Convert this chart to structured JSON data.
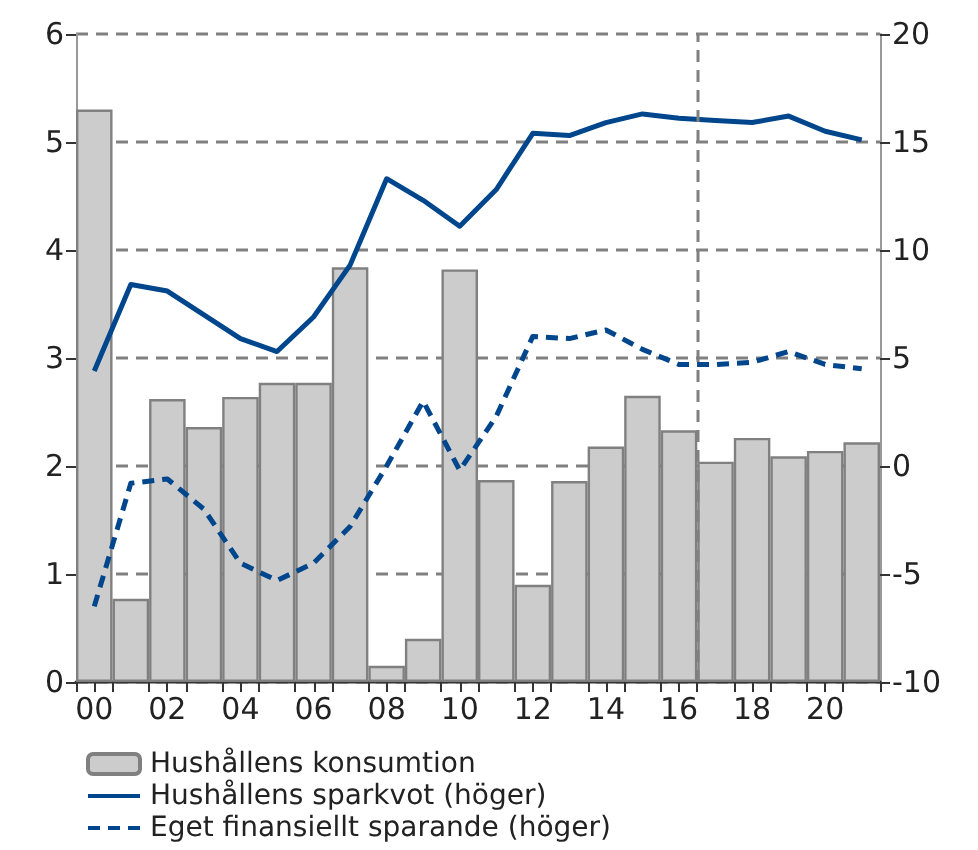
{
  "chart_data": {
    "type": "bar",
    "x": [
      2000,
      2001,
      2002,
      2003,
      2004,
      2005,
      2006,
      2007,
      2008,
      2009,
      2010,
      2011,
      2012,
      2013,
      2014,
      2015,
      2016,
      2017,
      2018,
      2019,
      2020,
      2021
    ],
    "xlim": [
      1999.5,
      2021.5
    ],
    "xticks": [
      {
        "value": 1999.5,
        "label": null
      },
      {
        "value": 2000,
        "label": "00"
      },
      {
        "value": 2000.5,
        "label": null
      },
      {
        "value": 2001.5,
        "label": null
      },
      {
        "value": 2002,
        "label": "02"
      },
      {
        "value": 2002.5,
        "label": null
      },
      {
        "value": 2003.5,
        "label": null
      },
      {
        "value": 2004,
        "label": "04"
      },
      {
        "value": 2004.5,
        "label": null
      },
      {
        "value": 2005.5,
        "label": null
      },
      {
        "value": 2006,
        "label": "06"
      },
      {
        "value": 2006.5,
        "label": null
      },
      {
        "value": 2007.5,
        "label": null
      },
      {
        "value": 2008,
        "label": "08"
      },
      {
        "value": 2008.5,
        "label": null
      },
      {
        "value": 2009.5,
        "label": null
      },
      {
        "value": 2010,
        "label": "10"
      },
      {
        "value": 2010.5,
        "label": null
      },
      {
        "value": 2011.5,
        "label": null
      },
      {
        "value": 2012,
        "label": "12"
      },
      {
        "value": 2012.5,
        "label": null
      },
      {
        "value": 2013.5,
        "label": null
      },
      {
        "value": 2014,
        "label": "14"
      },
      {
        "value": 2014.5,
        "label": null
      },
      {
        "value": 2015.5,
        "label": null
      },
      {
        "value": 2016,
        "label": "16"
      },
      {
        "value": 2016.5,
        "label": null
      },
      {
        "value": 2017.5,
        "label": null
      },
      {
        "value": 2018,
        "label": "18"
      },
      {
        "value": 2018.5,
        "label": null
      },
      {
        "value": 2019.5,
        "label": null
      },
      {
        "value": 2020,
        "label": "20"
      },
      {
        "value": 2020.5,
        "label": null
      },
      {
        "value": 2021.5,
        "label": null
      }
    ],
    "ylim": [
      0,
      6
    ],
    "yticks": [
      0,
      1,
      2,
      3,
      4,
      5,
      6
    ],
    "y2lim": [
      -10,
      20
    ],
    "y2ticks": [
      -10,
      -5,
      0,
      5,
      10,
      15,
      20
    ],
    "grid": "y",
    "legend": "bottom",
    "series": [
      {
        "name": "Hushållens konsumtion",
        "color": "#cccccc",
        "values": [
          5.3,
          0.77,
          2.62,
          2.36,
          2.64,
          2.77,
          2.77,
          3.84,
          0.15,
          0.4,
          3.82,
          1.87,
          0.9,
          1.86,
          2.18,
          2.65,
          2.33,
          2.04,
          2.26,
          2.09,
          2.14,
          2.22
        ]
      },
      {
        "name": "Hushållens sparkvot (höger)",
        "type": "line",
        "axis": "y2",
        "color": "#00468c",
        "line_style": "solid",
        "values": [
          4.4,
          8.4,
          8.1,
          7.0,
          5.9,
          5.3,
          6.9,
          9.3,
          13.3,
          12.3,
          11.1,
          12.8,
          15.4,
          15.3,
          15.9,
          16.3,
          16.1,
          16.0,
          15.9,
          16.2,
          15.5,
          15.1
        ]
      },
      {
        "name": "Eget finansiellt sparande (höger)",
        "type": "line",
        "axis": "y2",
        "color": "#00468c",
        "line_style": "dashed",
        "values": [
          -6.5,
          -0.8,
          -0.6,
          -2.0,
          -4.5,
          -5.3,
          -4.5,
          -2.8,
          0.0,
          3.0,
          -0.2,
          2.3,
          6.0,
          5.9,
          6.3,
          5.4,
          4.7,
          4.7,
          4.8,
          5.3,
          4.7,
          4.5
        ]
      }
    ],
    "ref_lines": [
      {
        "axis": "x",
        "value": 2016.5,
        "color": "#808080",
        "line_style": "dashed"
      }
    ]
  }
}
